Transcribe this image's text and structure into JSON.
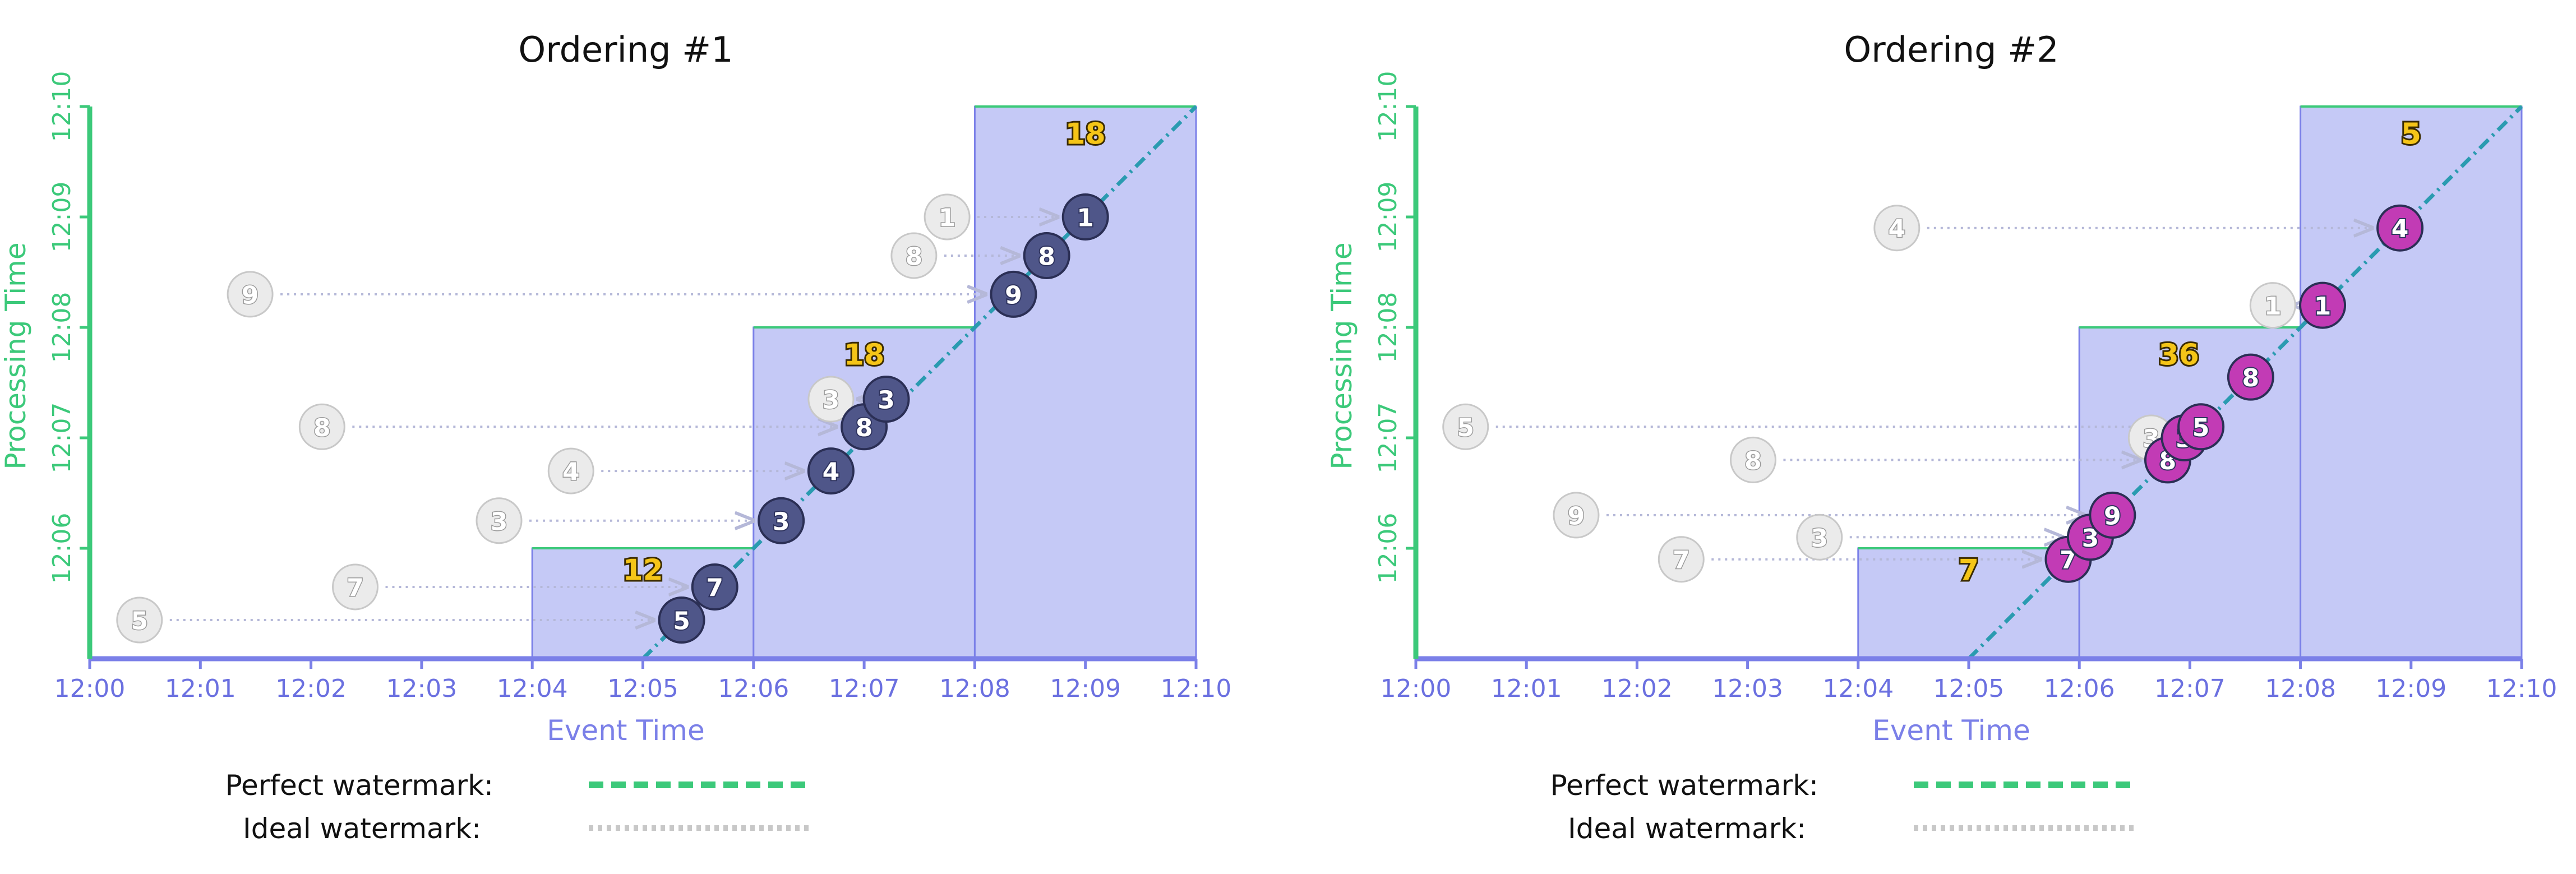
{
  "chart_data": [
    {
      "type": "scatter",
      "title": "Ordering #1",
      "xlabel": "Event Time",
      "ylabel": "Processing Time",
      "x_ticks": [
        "12:00",
        "12:01",
        "12:02",
        "12:03",
        "12:04",
        "12:05",
        "12:06",
        "12:07",
        "12:08",
        "12:09",
        "12:10"
      ],
      "y_ticks": [
        "12:06",
        "12:07",
        "12:08",
        "12:09",
        "12:10"
      ],
      "xlim": [
        "12:00",
        "12:10"
      ],
      "ylim": [
        "12:05",
        "12:10"
      ],
      "point_color": "#4f5689",
      "panes": [
        {
          "window": [
            "12:04",
            "12:06"
          ],
          "watermark": "12:06",
          "result": "12",
          "result_at": [
            "12:05",
            "12:05.8"
          ]
        },
        {
          "window": [
            "12:06",
            "12:08"
          ],
          "watermark": "12:08",
          "result": "18",
          "result_at": [
            "12:07",
            "12:07.75"
          ]
        },
        {
          "window": [
            "12:08",
            "12:10"
          ],
          "watermark": "12:10",
          "result": "18",
          "result_at": [
            "12:09",
            "12:09.75"
          ]
        }
      ],
      "points": [
        {
          "value": "5",
          "event_time": "12:05.35",
          "processing_time": "12:05.35",
          "arrival_time": "12:00.45"
        },
        {
          "value": "7",
          "event_time": "12:05.65",
          "processing_time": "12:05.65",
          "arrival_time": "12:02.4"
        },
        {
          "value": "3",
          "event_time": "12:06.25",
          "processing_time": "12:06.25",
          "arrival_time": "12:03.7"
        },
        {
          "value": "4",
          "event_time": "12:06.7",
          "processing_time": "12:06.7",
          "arrival_time": "12:04.35"
        },
        {
          "value": "8",
          "event_time": "12:07",
          "processing_time": "12:07.1",
          "arrival_time": "12:02.1"
        },
        {
          "value": "3",
          "event_time": "12:07.2",
          "processing_time": "12:07.35",
          "arrival_time": "12:06.7"
        },
        {
          "value": "9",
          "event_time": "12:08.35",
          "processing_time": "12:08.3",
          "arrival_time": "12:01.45"
        },
        {
          "value": "8",
          "event_time": "12:08.65",
          "processing_time": "12:08.65",
          "arrival_time": "12:07.45"
        },
        {
          "value": "1",
          "event_time": "12:09",
          "processing_time": "12:09",
          "arrival_time": "12:07.75"
        }
      ]
    },
    {
      "type": "scatter",
      "title": "Ordering #2",
      "xlabel": "Event Time",
      "ylabel": "Processing Time",
      "x_ticks": [
        "12:00",
        "12:01",
        "12:02",
        "12:03",
        "12:04",
        "12:05",
        "12:06",
        "12:07",
        "12:08",
        "12:09",
        "12:10"
      ],
      "y_ticks": [
        "12:06",
        "12:07",
        "12:08",
        "12:09",
        "12:10"
      ],
      "xlim": [
        "12:00",
        "12:10"
      ],
      "ylim": [
        "12:05",
        "12:10"
      ],
      "point_color": "#c23bb5",
      "panes": [
        {
          "window": [
            "12:04",
            "12:06"
          ],
          "watermark": "12:06",
          "result": "7",
          "result_at": [
            "12:05",
            "12:05.8"
          ]
        },
        {
          "window": [
            "12:06",
            "12:08"
          ],
          "watermark": "12:08",
          "result": "36",
          "result_at": [
            "12:06.9",
            "12:07.75"
          ]
        },
        {
          "window": [
            "12:08",
            "12:10"
          ],
          "watermark": "12:10",
          "result": "5",
          "result_at": [
            "12:09",
            "12:09.75"
          ]
        }
      ],
      "points": [
        {
          "value": "7",
          "event_time": "12:05.9",
          "processing_time": "12:05.9",
          "arrival_time": "12:02.4"
        },
        {
          "value": "3",
          "event_time": "12:06.1",
          "processing_time": "12:06.1",
          "arrival_time": "12:03.65"
        },
        {
          "value": "9",
          "event_time": "12:06.3",
          "processing_time": "12:06.3",
          "arrival_time": "12:01.45"
        },
        {
          "value": "8",
          "event_time": "12:06.8",
          "processing_time": "12:06.8",
          "arrival_time": "12:03.05"
        },
        {
          "value": "3",
          "event_time": "12:06.95",
          "processing_time": "12:07",
          "arrival_time": "12:06.65"
        },
        {
          "value": "5",
          "event_time": "12:07.1",
          "processing_time": "12:07.1",
          "arrival_time": "12:00.45"
        },
        {
          "value": "8",
          "event_time": "12:07.55",
          "processing_time": "12:07.55",
          "arrival_time": ""
        },
        {
          "value": "1",
          "event_time": "12:08.2",
          "processing_time": "12:08.2",
          "arrival_time": "12:07.75"
        },
        {
          "value": "4",
          "event_time": "12:08.9",
          "processing_time": "12:08.9",
          "arrival_time": "12:04.35"
        }
      ]
    }
  ],
  "legend": {
    "perfect_label": "Perfect watermark:",
    "ideal_label": "Ideal watermark:"
  },
  "colors": {
    "pane_fill": "#c5c9f6",
    "pane_edge": "#7b80e8",
    "axis_x": "#7b80e8",
    "axis_y": "#3cc97a",
    "perfect_watermark": "#3cc97a",
    "ideal_watermark": "#2a9bb0",
    "ghost_fill": "#ebebeb",
    "ghost_stroke": "#c8c8c8",
    "result_text": "#f5c518",
    "arrow": "#b5b8d8"
  }
}
